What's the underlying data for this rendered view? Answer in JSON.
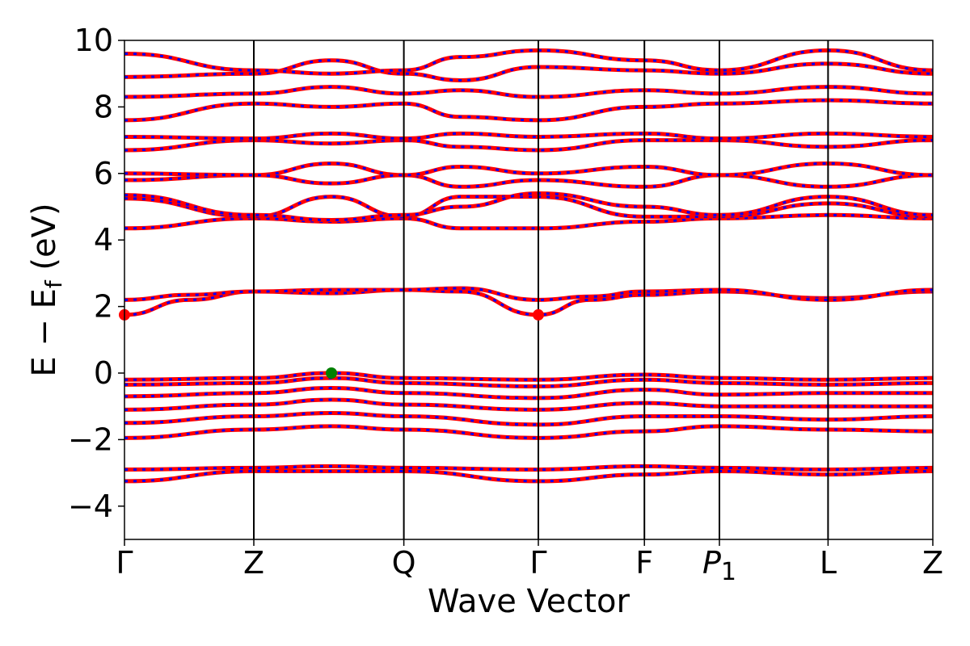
{
  "chart_data": {
    "type": "line",
    "xlabel": "Wave Vector",
    "ylabel": {
      "main": "E − E",
      "sub": "f",
      "unit": " (eV)"
    },
    "ylim": [
      -5,
      10
    ],
    "yticks": [
      {
        "value": -4,
        "label": "−4"
      },
      {
        "value": -2,
        "label": "−2"
      },
      {
        "value": 0,
        "label": "0"
      },
      {
        "value": 2,
        "label": "2"
      },
      {
        "value": 4,
        "label": "4"
      },
      {
        "value": 6,
        "label": "6"
      },
      {
        "value": 8,
        "label": "8"
      },
      {
        "value": 10,
        "label": "10"
      }
    ],
    "kpoints": [
      {
        "k": 0.0,
        "label": "Γ"
      },
      {
        "k": 1.0,
        "label": "Z"
      },
      {
        "k": 2.16,
        "label": "Q"
      },
      {
        "k": 3.2,
        "label": "Γ"
      },
      {
        "k": 4.02,
        "label": "F"
      },
      {
        "k": 4.6,
        "label": "P",
        "sub": "1"
      },
      {
        "k": 5.44,
        "label": "L"
      },
      {
        "k": 6.25,
        "label": "Z"
      }
    ],
    "grid": false,
    "series_colors": {
      "spin_up": "#ff0000",
      "spin_down": "#0000ff"
    },
    "band_style": "red and blue dashed, overlapping",
    "bands": [
      {
        "k": [
          0,
          1.0,
          1.6,
          2.16,
          3.2,
          4.02,
          4.6,
          5.44,
          6.25
        ],
        "E": [
          -3.25,
          -2.95,
          -2.95,
          -2.95,
          -3.25,
          -3.05,
          -2.95,
          -3.05,
          -2.95
        ]
      },
      {
        "k": [
          0,
          1.0,
          1.6,
          2.16,
          3.2,
          4.02,
          4.6,
          5.44,
          6.25
        ],
        "E": [
          -2.9,
          -2.85,
          -2.8,
          -2.85,
          -2.9,
          -2.8,
          -2.85,
          -2.9,
          -2.85
        ]
      },
      {
        "k": [
          0,
          1.0,
          1.6,
          2.16,
          3.2,
          4.02,
          4.6,
          5.44,
          6.25
        ],
        "E": [
          -1.95,
          -1.7,
          -1.6,
          -1.7,
          -1.95,
          -1.75,
          -1.6,
          -1.7,
          -1.75
        ]
      },
      {
        "k": [
          0,
          1.0,
          1.6,
          2.16,
          3.2,
          4.02,
          4.6,
          5.44,
          6.25
        ],
        "E": [
          -1.5,
          -1.3,
          -1.2,
          -1.3,
          -1.55,
          -1.3,
          -1.3,
          -1.4,
          -1.3
        ]
      },
      {
        "k": [
          0,
          1.0,
          1.6,
          2.16,
          3.2,
          4.02,
          4.6,
          5.44,
          6.25
        ],
        "E": [
          -1.1,
          -0.95,
          -0.8,
          -0.95,
          -1.1,
          -0.9,
          -1.0,
          -1.0,
          -1.0
        ]
      },
      {
        "k": [
          0,
          1.0,
          1.6,
          2.16,
          3.2,
          4.02,
          4.6,
          5.44,
          6.25
        ],
        "E": [
          -0.7,
          -0.6,
          -0.45,
          -0.6,
          -0.75,
          -0.5,
          -0.65,
          -0.6,
          -0.6
        ]
      },
      {
        "k": [
          0,
          1.0,
          1.6,
          2.16,
          3.2,
          4.02,
          4.6,
          5.44,
          6.25
        ],
        "E": [
          -0.35,
          -0.3,
          -0.15,
          -0.3,
          -0.4,
          -0.2,
          -0.3,
          -0.35,
          -0.3
        ]
      },
      {
        "k": [
          0,
          1.0,
          1.6,
          2.16,
          3.2,
          4.02,
          4.6,
          5.44,
          6.25
        ],
        "E": [
          -0.2,
          -0.15,
          0.0,
          -0.15,
          -0.2,
          -0.05,
          -0.15,
          -0.2,
          -0.15
        ]
      },
      {
        "k": [
          0,
          0.5,
          1.0,
          1.6,
          2.16,
          2.6,
          3.2,
          3.6,
          4.02,
          4.6,
          5.44,
          6.25
        ],
        "E": [
          1.75,
          2.2,
          2.45,
          2.4,
          2.5,
          2.45,
          1.75,
          2.2,
          2.35,
          2.45,
          2.25,
          2.45
        ]
      },
      {
        "k": [
          0,
          0.5,
          1.0,
          1.6,
          2.16,
          2.6,
          3.2,
          3.6,
          4.02,
          4.6,
          5.44,
          6.25
        ],
        "E": [
          2.2,
          2.35,
          2.45,
          2.5,
          2.5,
          2.55,
          2.2,
          2.3,
          2.45,
          2.5,
          2.2,
          2.5
        ]
      },
      {
        "k": [
          0,
          1.0,
          1.6,
          2.16,
          2.6,
          3.2,
          4.02,
          4.6,
          5.44,
          6.25
        ],
        "E": [
          4.35,
          4.65,
          4.55,
          4.65,
          4.35,
          4.35,
          4.55,
          4.65,
          4.75,
          4.65
        ]
      },
      {
        "k": [
          0,
          1.0,
          1.6,
          2.16,
          2.6,
          3.2,
          4.02,
          4.6,
          5.44,
          6.25
        ],
        "E": [
          5.25,
          4.7,
          5.3,
          4.7,
          5.3,
          5.3,
          4.7,
          4.7,
          5.1,
          4.7
        ]
      },
      {
        "k": [
          0,
          1.0,
          1.6,
          2.16,
          2.6,
          3.2,
          4.02,
          4.6,
          5.44,
          6.25
        ],
        "E": [
          5.35,
          4.75,
          4.6,
          4.75,
          5.0,
          5.4,
          5.0,
          4.75,
          5.3,
          4.75
        ]
      },
      {
        "k": [
          0,
          1.0,
          1.6,
          2.16,
          2.6,
          3.2,
          4.02,
          4.6,
          5.44,
          6.25
        ],
        "E": [
          5.8,
          5.95,
          6.3,
          5.95,
          5.6,
          5.8,
          5.6,
          5.95,
          5.6,
          5.95
        ]
      },
      {
        "k": [
          0,
          1.0,
          1.6,
          2.16,
          2.6,
          3.2,
          4.02,
          4.6,
          5.44,
          6.25
        ],
        "E": [
          6.0,
          5.95,
          5.7,
          5.95,
          6.2,
          6.0,
          6.2,
          5.95,
          6.3,
          5.95
        ]
      },
      {
        "k": [
          0,
          1.0,
          1.6,
          2.16,
          2.6,
          3.2,
          4.02,
          4.6,
          5.44,
          6.25
        ],
        "E": [
          6.7,
          7.0,
          6.9,
          7.0,
          6.8,
          6.7,
          7.0,
          7.0,
          6.8,
          7.0
        ]
      },
      {
        "k": [
          0,
          1.0,
          1.6,
          2.16,
          2.6,
          3.2,
          4.02,
          4.6,
          5.44,
          6.25
        ],
        "E": [
          7.1,
          7.05,
          7.2,
          7.05,
          7.2,
          7.1,
          7.2,
          7.05,
          7.2,
          7.1
        ]
      },
      {
        "k": [
          0,
          1.0,
          1.6,
          2.16,
          2.6,
          3.2,
          4.02,
          4.6,
          5.44,
          6.25
        ],
        "E": [
          7.6,
          8.1,
          8.0,
          8.1,
          7.7,
          7.6,
          8.0,
          8.1,
          8.2,
          8.1
        ]
      },
      {
        "k": [
          0,
          1.0,
          1.6,
          2.16,
          2.6,
          3.2,
          4.02,
          4.6,
          5.44,
          6.25
        ],
        "E": [
          8.3,
          8.4,
          8.6,
          8.4,
          8.5,
          8.3,
          8.5,
          8.4,
          8.6,
          8.4
        ]
      },
      {
        "k": [
          0,
          1.0,
          1.6,
          2.16,
          2.6,
          3.2,
          4.02,
          4.6,
          5.44,
          6.25
        ],
        "E": [
          8.9,
          9.0,
          9.4,
          9.0,
          8.8,
          9.2,
          9.1,
          9.0,
          9.3,
          9.0
        ]
      },
      {
        "k": [
          0,
          1.0,
          1.6,
          2.16,
          2.6,
          3.2,
          4.02,
          4.6,
          5.44,
          6.25
        ],
        "E": [
          9.6,
          9.1,
          9.0,
          9.1,
          9.5,
          9.7,
          9.4,
          9.1,
          9.7,
          9.1
        ]
      }
    ],
    "markers": [
      {
        "name": "cbm-marker-1",
        "k": 0.0,
        "E": 1.75,
        "color": "#ff0000"
      },
      {
        "name": "cbm-marker-2",
        "k": 3.2,
        "E": 1.75,
        "color": "#ff0000"
      },
      {
        "name": "vbm-marker",
        "k": 1.6,
        "E": 0.0,
        "color": "#008000"
      }
    ]
  }
}
